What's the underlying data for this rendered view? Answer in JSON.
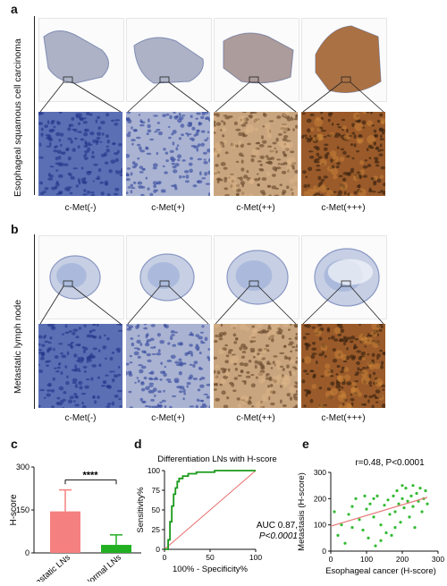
{
  "panels": {
    "a": {
      "letter": "a",
      "side_label": "Esophageal squamous cell carcinoma"
    },
    "b": {
      "letter": "b",
      "side_label": "Metastatic lymph node"
    },
    "c": {
      "letter": "c"
    },
    "d": {
      "letter": "d"
    },
    "e": {
      "letter": "e"
    }
  },
  "grades": [
    "c-Met(-)",
    "c-Met(+)",
    "c-Met(++)",
    "c-Met(+++)"
  ],
  "colors": {
    "blue_stain": "#3d56a8",
    "brown_stain": "#a9642a",
    "bar_red": "#f58080",
    "bar_green": "#22b022",
    "roc_green": "#1a9a1a",
    "diag_red": "#e86a6a",
    "scatter_green": "#33bb33",
    "fit_red": "#e87a7a"
  },
  "chart_data": [
    {
      "panel": "c",
      "type": "bar",
      "categories": [
        "Metastatic LNs",
        "Normal LNs"
      ],
      "values": [
        145,
        28
      ],
      "error": [
        75,
        35
      ],
      "ylabel": "H-score",
      "ylim": [
        0,
        300
      ],
      "yticks": [
        0,
        150,
        300
      ],
      "annotation": "****"
    },
    {
      "panel": "d",
      "type": "line",
      "title": "Differentiation LNs with H-score",
      "xlabel": "100% - Specificity%",
      "ylabel": "Sensitivity%",
      "xlim": [
        0,
        100
      ],
      "ylim": [
        0,
        100
      ],
      "xticks": [
        0,
        50,
        100
      ],
      "yticks": [
        0,
        25,
        50,
        75,
        100
      ],
      "series": [
        {
          "x": [
            0,
            4,
            4,
            6,
            6,
            8,
            8,
            10,
            10,
            12,
            12,
            14,
            14,
            16,
            16,
            20,
            20,
            26,
            26,
            35,
            35,
            55,
            55,
            100
          ],
          "y": [
            0,
            0,
            12,
            12,
            35,
            35,
            55,
            55,
            70,
            70,
            78,
            78,
            86,
            86,
            90,
            90,
            93,
            93,
            96,
            96,
            98,
            98,
            100,
            100
          ]
        }
      ],
      "reference_line": [
        [
          0,
          0
        ],
        [
          100,
          100
        ]
      ],
      "annotation_auc": "AUC 0.87,",
      "annotation_p": "P<0.0001"
    },
    {
      "panel": "e",
      "type": "scatter",
      "annotation": "r=0.48, P<0.0001",
      "xlabel": "Esophageal cancer  (H-score)",
      "ylabel": "Metastasis (H-score)",
      "xlim": [
        0,
        300
      ],
      "ylim": [
        0,
        300
      ],
      "xticks": [
        0,
        100,
        200,
        300
      ],
      "yticks": [
        0,
        100,
        200,
        300
      ],
      "fit_line": [
        [
          0,
          95
        ],
        [
          270,
          205
        ]
      ],
      "points": [
        [
          10,
          150
        ],
        [
          20,
          60
        ],
        [
          30,
          100
        ],
        [
          40,
          30
        ],
        [
          50,
          140
        ],
        [
          60,
          90
        ],
        [
          70,
          200
        ],
        [
          80,
          120
        ],
        [
          90,
          80
        ],
        [
          100,
          160
        ],
        [
          105,
          50
        ],
        [
          110,
          180
        ],
        [
          120,
          130
        ],
        [
          125,
          20
        ],
        [
          130,
          210
        ],
        [
          140,
          100
        ],
        [
          150,
          175
        ],
        [
          155,
          70
        ],
        [
          160,
          195
        ],
        [
          165,
          140
        ],
        [
          170,
          60
        ],
        [
          175,
          210
        ],
        [
          180,
          150
        ],
        [
          185,
          230
        ],
        [
          190,
          180
        ],
        [
          195,
          110
        ],
        [
          200,
          200
        ],
        [
          205,
          165
        ],
        [
          210,
          240
        ],
        [
          215,
          190
        ],
        [
          220,
          130
        ],
        [
          225,
          210
        ],
        [
          230,
          170
        ],
        [
          235,
          90
        ],
        [
          240,
          220
        ],
        [
          245,
          190
        ],
        [
          250,
          240
        ],
        [
          255,
          150
        ],
        [
          260,
          200
        ],
        [
          265,
          230
        ],
        [
          270,
          180
        ],
        [
          120,
          200
        ],
        [
          140,
          40
        ],
        [
          95,
          210
        ],
        [
          180,
          90
        ],
        [
          200,
          250
        ],
        [
          60,
          170
        ],
        [
          230,
          250
        ]
      ]
    }
  ]
}
